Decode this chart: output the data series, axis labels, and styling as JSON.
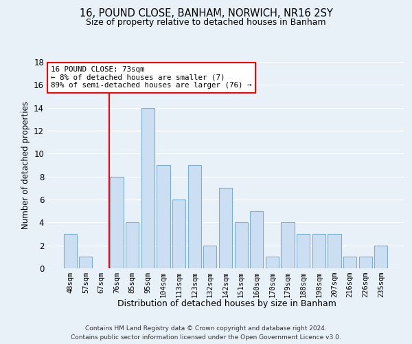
{
  "title1": "16, POUND CLOSE, BANHAM, NORWICH, NR16 2SY",
  "title2": "Size of property relative to detached houses in Banham",
  "xlabel": "Distribution of detached houses by size in Banham",
  "ylabel": "Number of detached properties",
  "categories": [
    "48sqm",
    "57sqm",
    "67sqm",
    "76sqm",
    "85sqm",
    "95sqm",
    "104sqm",
    "113sqm",
    "123sqm",
    "132sqm",
    "142sqm",
    "151sqm",
    "160sqm",
    "170sqm",
    "179sqm",
    "188sqm",
    "198sqm",
    "207sqm",
    "216sqm",
    "226sqm",
    "235sqm"
  ],
  "values": [
    3,
    1,
    0,
    8,
    4,
    14,
    9,
    6,
    9,
    2,
    7,
    4,
    5,
    1,
    4,
    3,
    3,
    3,
    1,
    1,
    2
  ],
  "bar_color": "#ccdff2",
  "bar_edge_color": "#7aafd4",
  "red_line_x": 2.5,
  "annotation_line1": "16 POUND CLOSE: 73sqm",
  "annotation_line2": "← 8% of detached houses are smaller (7)",
  "annotation_line3": "89% of semi-detached houses are larger (76) →",
  "annotation_box_color": "white",
  "annotation_box_edge": "red",
  "ylim": [
    0,
    18
  ],
  "yticks": [
    0,
    2,
    4,
    6,
    8,
    10,
    12,
    14,
    16,
    18
  ],
  "footer1": "Contains HM Land Registry data © Crown copyright and database right 2024.",
  "footer2": "Contains public sector information licensed under the Open Government Licence v3.0.",
  "bg_color": "#e8f0f8",
  "grid_color": "#ffffff",
  "title1_fontsize": 10.5,
  "title2_fontsize": 9
}
